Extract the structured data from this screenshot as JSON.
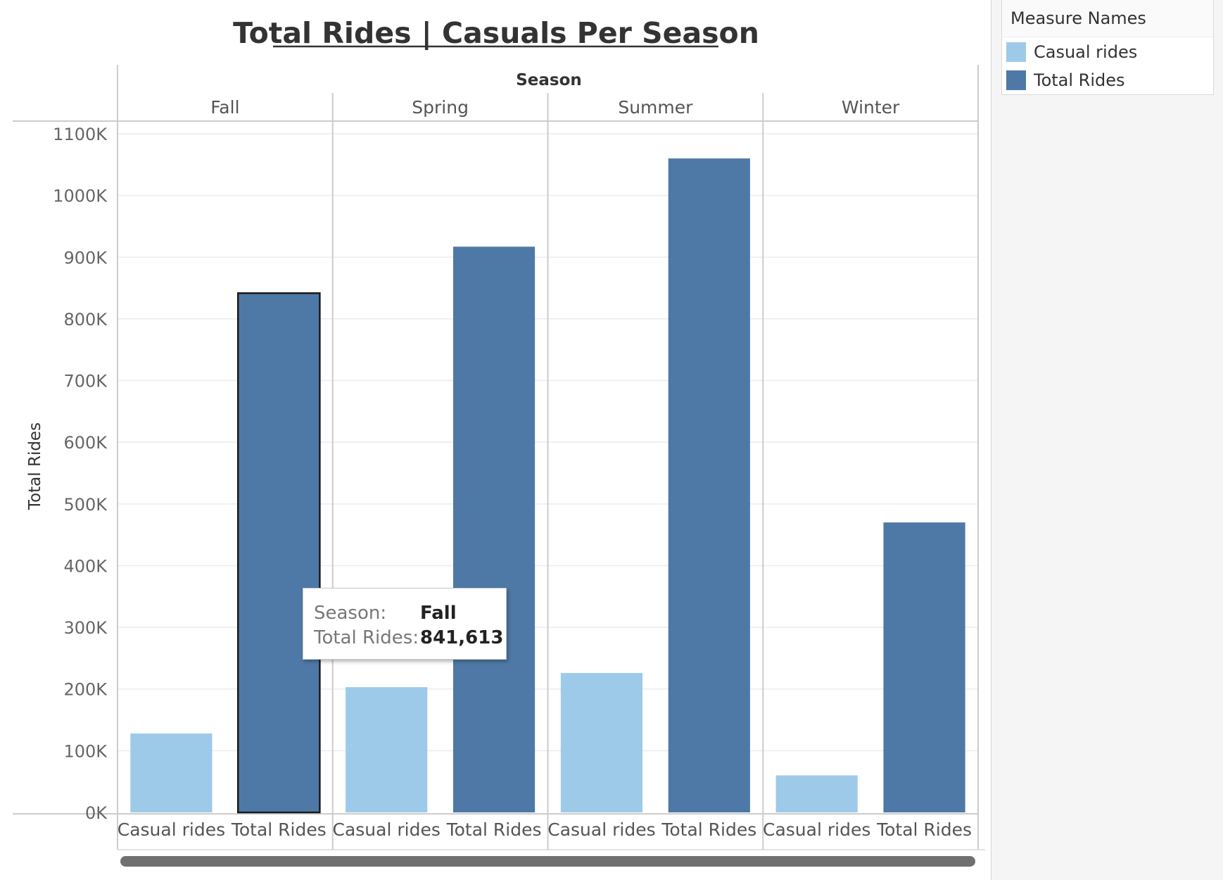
{
  "colors": {
    "casual": "#9ecae9",
    "total": "#4e79a7",
    "selected_outline": "#1a1a1a",
    "gridline": "#ececec",
    "divider": "#cccccc"
  },
  "legend": {
    "title": "Measure Names",
    "items": [
      {
        "label": "Casual rides",
        "color": "#9ecae9"
      },
      {
        "label": "Total Rides",
        "color": "#4e79a7"
      }
    ]
  },
  "tooltip": {
    "rows": [
      {
        "key": "Season:",
        "value": "Fall"
      },
      {
        "key": "Total Rides:",
        "value": "841,613"
      }
    ]
  },
  "chart_data": {
    "type": "bar",
    "title": "Total Rides | Casuals Per Season",
    "column_header": "Season",
    "ylabel": "Total Rides",
    "ylim": [
      0,
      1100000
    ],
    "y_ticks": [
      0,
      100000,
      200000,
      300000,
      400000,
      500000,
      600000,
      700000,
      800000,
      900000,
      1000000,
      1100000
    ],
    "y_tick_labels": [
      "0K",
      "100K",
      "200K",
      "300K",
      "400K",
      "500K",
      "600K",
      "700K",
      "800K",
      "900K",
      "1000K",
      "1100K"
    ],
    "grid": true,
    "legend_position": "top-right",
    "seasons": [
      "Fall",
      "Spring",
      "Summer",
      "Winter"
    ],
    "measures": [
      "Casual rides",
      "Total Rides"
    ],
    "series": [
      {
        "name": "Casual rides",
        "values": [
          128000,
          203000,
          226000,
          60000
        ]
      },
      {
        "name": "Total Rides",
        "values": [
          841613,
          917000,
          1060000,
          470000
        ]
      }
    ],
    "selected": {
      "season": "Fall",
      "measure": "Total Rides"
    }
  }
}
